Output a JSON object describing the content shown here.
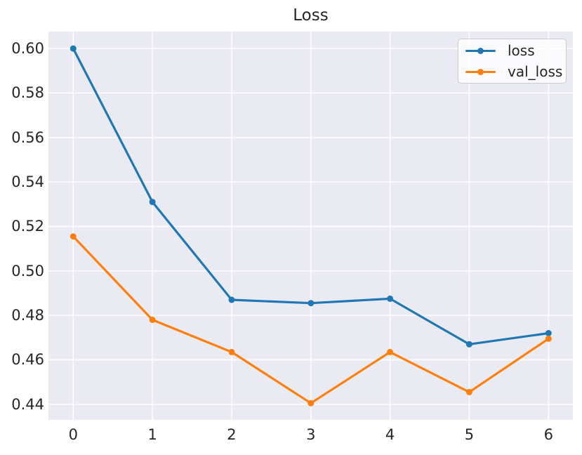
{
  "chart_data": {
    "type": "line",
    "title": "Loss",
    "x": [
      0,
      1,
      2,
      3,
      4,
      5,
      6
    ],
    "series": [
      {
        "name": "loss",
        "color": "#1f77b4",
        "values": [
          0.6,
          0.531,
          0.487,
          0.4855,
          0.4875,
          0.467,
          0.472
        ]
      },
      {
        "name": "val_loss",
        "color": "#ff7f0e",
        "values": [
          0.5155,
          0.478,
          0.4635,
          0.4405,
          0.4635,
          0.4455,
          0.4695
        ]
      }
    ],
    "xlabel": "",
    "ylabel": "",
    "xticks": [
      0,
      1,
      2,
      3,
      4,
      5,
      6
    ],
    "xtick_labels": [
      "0",
      "1",
      "2",
      "3",
      "4",
      "5",
      "6"
    ],
    "yticks": [
      0.44,
      0.46,
      0.48,
      0.5,
      0.52,
      0.54,
      0.56,
      0.58,
      0.6
    ],
    "ytick_labels": [
      "0.44",
      "0.46",
      "0.48",
      "0.50",
      "0.52",
      "0.54",
      "0.56",
      "0.58",
      "0.60"
    ],
    "xlim": [
      -0.313,
      6.308
    ],
    "ylim": [
      0.433,
      0.6076
    ],
    "grid": true,
    "legend_position": "upper right",
    "marker": "circle",
    "line_width": 3.2,
    "marker_radius": 4.5,
    "plot_bg_color": "#eaeaf2",
    "grid_color": "#ffffff",
    "text_color": "#262626",
    "legend_border_color": "#cccccc"
  }
}
